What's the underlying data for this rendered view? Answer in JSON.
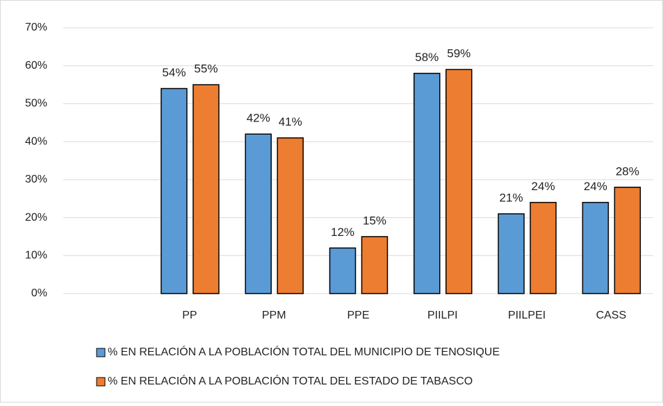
{
  "chart_data": {
    "type": "bar",
    "categories": [
      null,
      "PP",
      "PPM",
      "PPE",
      "PIILPI",
      "PIILPEI",
      "CASS"
    ],
    "series": [
      {
        "name": "% EN RELACIÓN A LA POBLACIÓN TOTAL DEL MUNICIPIO DE TENOSIQUE",
        "color": "#5b9bd5",
        "values": [
          null,
          54,
          42,
          12,
          58,
          21,
          24
        ],
        "value_labels": [
          null,
          "54%",
          "42%",
          "12%",
          "58%",
          "21%",
          "24%"
        ]
      },
      {
        "name": "% EN RELACIÓN A LA POBLACIÓN TOTAL DEL ESTADO DE TABASCO",
        "color": "#ed7d31",
        "values": [
          null,
          55,
          41,
          15,
          59,
          24,
          28
        ],
        "value_labels": [
          null,
          "55%",
          "41%",
          "15%",
          "59%",
          "24%",
          "28%"
        ]
      }
    ],
    "ylim": [
      0,
      70
    ],
    "yticks": [
      {
        "value": 0,
        "label": "0%"
      },
      {
        "value": 10,
        "label": "10%"
      },
      {
        "value": 20,
        "label": "20%"
      },
      {
        "value": 30,
        "label": "30%"
      },
      {
        "value": 40,
        "label": "40%"
      },
      {
        "value": 50,
        "label": "50%"
      },
      {
        "value": 60,
        "label": "60%"
      },
      {
        "value": 70,
        "label": "70%"
      }
    ],
    "grid": true,
    "legend": "bottom"
  }
}
